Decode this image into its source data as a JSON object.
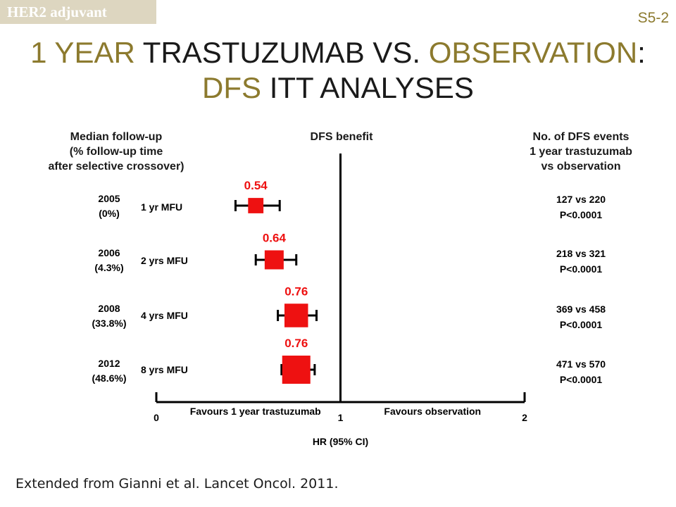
{
  "header": {
    "tag": "HER2 adjuvant",
    "slide_code": "S5-2",
    "title_parts": [
      {
        "text": "1 YEAR",
        "accent": true
      },
      {
        "text": " TRASTUZUMAB VS. ",
        "accent": false
      },
      {
        "text": "OBSERVATION",
        "accent": true
      },
      {
        "text": ":",
        "accent": false
      },
      {
        "text": "DFS",
        "accent": true
      },
      {
        "text": " ITT ANALYSES",
        "accent": false
      }
    ]
  },
  "columns": {
    "left": [
      "Median follow-up",
      "(% follow-up time",
      "after selective crossover)"
    ],
    "center": "DFS benefit",
    "right": [
      "No. of DFS events",
      "1 year trastuzumab",
      "vs observation"
    ]
  },
  "rows": [
    {
      "year": "2005",
      "pct": "(0%)",
      "mfu": "1 yr MFU",
      "events": "127  vs  220",
      "p": "P<0.0001"
    },
    {
      "year": "2006",
      "pct": "(4.3%)",
      "mfu": "2 yrs MFU",
      "events": "218  vs  321",
      "p": "P<0.0001"
    },
    {
      "year": "2008",
      "pct": "(33.8%)",
      "mfu": "4 yrs MFU",
      "events": "369  vs  458",
      "p": "P<0.0001"
    },
    {
      "year": "2012",
      "pct": "(48.6%)",
      "mfu": "8 yrs MFU",
      "events": "471  vs  570",
      "p": "P<0.0001"
    }
  ],
  "chart_data": {
    "type": "forest",
    "xlabel": "HR (95% CI)",
    "xlim": [
      0,
      2
    ],
    "x_ticks": [
      "0",
      "1",
      "2"
    ],
    "reference_line": 1,
    "favours_left": "Favours  1  year  trastuzumab",
    "favours_right": "Favours  observation",
    "marker_color": "#ee1111",
    "points": [
      {
        "label": "0.54",
        "hr": 0.54,
        "ci": [
          0.43,
          0.67
        ],
        "weight": 0.3
      },
      {
        "label": "0.64",
        "hr": 0.64,
        "ci": [
          0.54,
          0.76
        ],
        "weight": 0.5
      },
      {
        "label": "0.76",
        "hr": 0.76,
        "ci": [
          0.66,
          0.87
        ],
        "weight": 0.75
      },
      {
        "label": "0.76",
        "hr": 0.76,
        "ci": [
          0.68,
          0.86
        ],
        "weight": 1.0
      }
    ]
  },
  "footer": "Extended from Gianni et al. Lancet Oncol. 2011."
}
